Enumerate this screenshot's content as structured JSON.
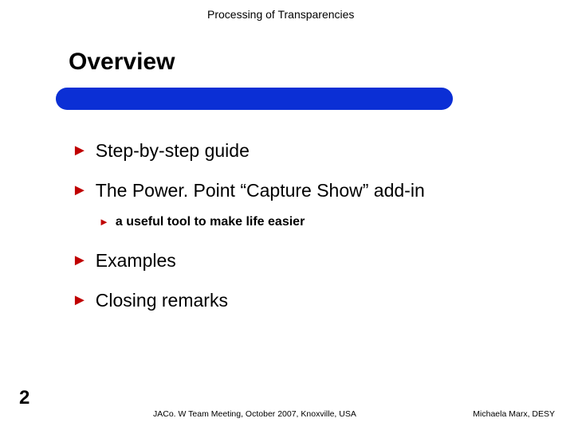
{
  "header": "Processing of Transparencies",
  "title": "Overview",
  "bullets": {
    "b1": "Step-by-step guide",
    "b2": "The Power. Point “Capture Show” add-in",
    "b2_sub": "a useful tool to make life easier",
    "b3": "Examples",
    "b4": "Closing remarks"
  },
  "slide_number": "2",
  "footer_left": "JACo. W Team Meeting, October 2007, Knoxville, USA",
  "footer_right": "Michaela Marx, DESY",
  "colors": {
    "bullet_triangle": "#c00000",
    "bar": "#0b2fd5",
    "bg": "#ffffff"
  },
  "fonts": {
    "title_size": 30,
    "bullet_size": 23,
    "sub_bullet_size": 16,
    "footer_size": 10.5
  }
}
